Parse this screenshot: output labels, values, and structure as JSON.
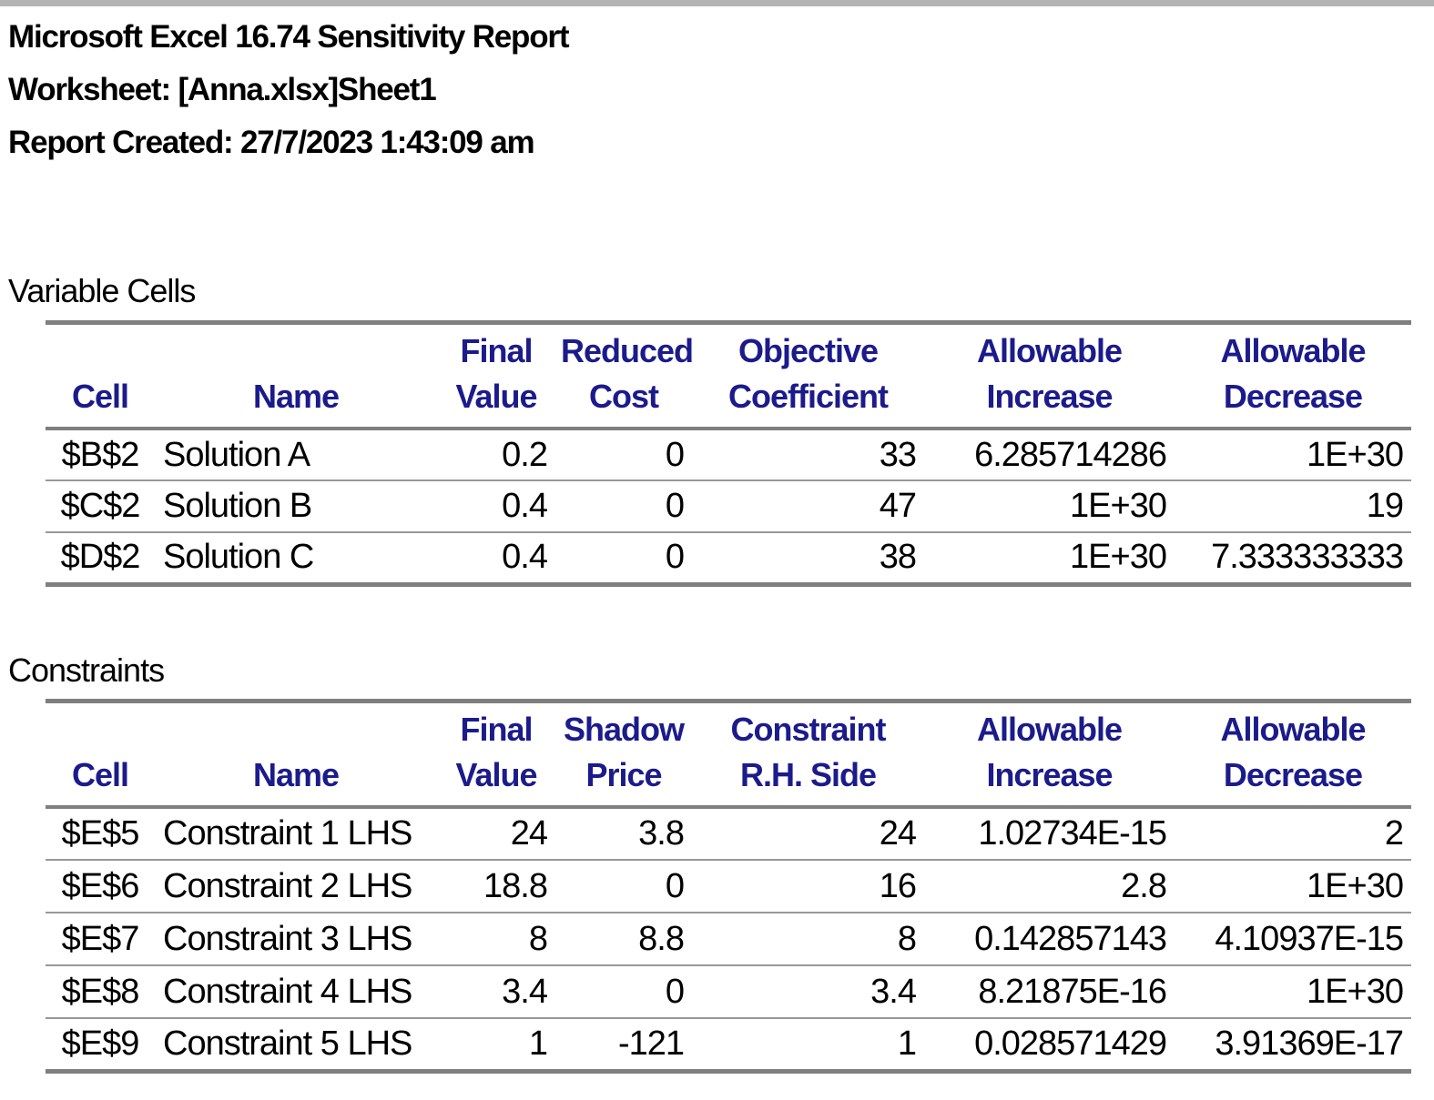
{
  "page": {
    "title": "Microsoft Excel 16.74 Sensitivity Report",
    "worksheet_line": "Worksheet: [Anna.xlsx]Sheet1",
    "created_line": "Report Created: 27/7/2023 1:43:09 am"
  },
  "colors": {
    "header_text": "#1b1b8c",
    "border_thick": "#7f7f7f",
    "border_thin": "#989898",
    "top_strip": "#b4b4b4",
    "body_text": "#000000",
    "background": "#ffffff"
  },
  "variable_cells": {
    "section_label": "Variable Cells",
    "headers": [
      {
        "top": "",
        "bottom": "Cell"
      },
      {
        "top": "",
        "bottom": "Name"
      },
      {
        "top": "Final",
        "bottom": "Value"
      },
      {
        "top": "Reduced",
        "bottom": "Cost"
      },
      {
        "top": "Objective",
        "bottom": "Coefficient"
      },
      {
        "top": "Allowable",
        "bottom": "Increase"
      },
      {
        "top": "Allowable",
        "bottom": "Decrease"
      }
    ],
    "rows": [
      {
        "cell": "$B$2",
        "name": "Solution A",
        "final_value": "0.2",
        "reduced_cost": "0",
        "objective_coefficient": "33",
        "allowable_increase": "6.285714286",
        "allowable_decrease": "1E+30"
      },
      {
        "cell": "$C$2",
        "name": "Solution B",
        "final_value": "0.4",
        "reduced_cost": "0",
        "objective_coefficient": "47",
        "allowable_increase": "1E+30",
        "allowable_decrease": "19"
      },
      {
        "cell": "$D$2",
        "name": "Solution C",
        "final_value": "0.4",
        "reduced_cost": "0",
        "objective_coefficient": "38",
        "allowable_increase": "1E+30",
        "allowable_decrease": "7.333333333"
      }
    ]
  },
  "constraints": {
    "section_label": "Constraints",
    "headers": [
      {
        "top": "",
        "bottom": "Cell"
      },
      {
        "top": "",
        "bottom": "Name"
      },
      {
        "top": "Final",
        "bottom": "Value"
      },
      {
        "top": "Shadow",
        "bottom": "Price"
      },
      {
        "top": "Constraint",
        "bottom": "R.H. Side"
      },
      {
        "top": "Allowable",
        "bottom": "Increase"
      },
      {
        "top": "Allowable",
        "bottom": "Decrease"
      }
    ],
    "rows": [
      {
        "cell": "$E$5",
        "name": "Constraint 1 LHS",
        "final_value": "24",
        "shadow_price": "3.8",
        "rhs": "24",
        "allowable_increase": "1.02734E-15",
        "allowable_decrease": "2"
      },
      {
        "cell": "$E$6",
        "name": "Constraint 2 LHS",
        "final_value": "18.8",
        "shadow_price": "0",
        "rhs": "16",
        "allowable_increase": "2.8",
        "allowable_decrease": "1E+30"
      },
      {
        "cell": "$E$7",
        "name": "Constraint 3 LHS",
        "final_value": "8",
        "shadow_price": "8.8",
        "rhs": "8",
        "allowable_increase": "0.142857143",
        "allowable_decrease": "4.10937E-15"
      },
      {
        "cell": "$E$8",
        "name": "Constraint 4 LHS",
        "final_value": "3.4",
        "shadow_price": "0",
        "rhs": "3.4",
        "allowable_increase": "8.21875E-16",
        "allowable_decrease": "1E+30"
      },
      {
        "cell": "$E$9",
        "name": "Constraint 5 LHS",
        "final_value": "1",
        "shadow_price": "-121",
        "rhs": "1",
        "allowable_increase": "0.028571429",
        "allowable_decrease": "3.91369E-17"
      }
    ]
  }
}
